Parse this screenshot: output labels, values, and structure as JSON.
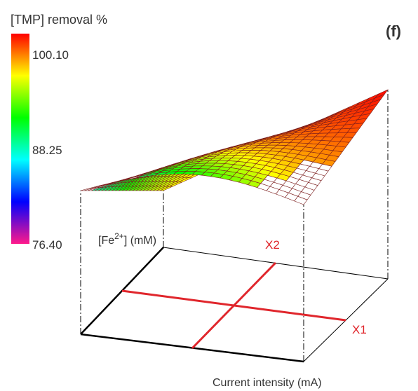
{
  "panel_label": "(f)",
  "colorbar": {
    "title": "[TMP] removal %",
    "ticks": [
      "100.10",
      "88.25",
      "76.40"
    ],
    "range": [
      76.4,
      100.1
    ],
    "stops": [
      "#ff1a8a",
      "#0000ff",
      "#00ffff",
      "#00ff00",
      "#ffff00",
      "#ff0000"
    ]
  },
  "chart_data": {
    "type": "surface",
    "zlabel": "[TMP] removal %",
    "ylabel": "[Fe²⁺] (mM)",
    "xlabel": "Current intensity (mA)",
    "factor_labels": [
      "X2",
      "X1"
    ],
    "zlim": [
      76.4,
      100.1
    ],
    "grid": true,
    "surface_model": "z increases with current intensity and [Fe2+]; maximum ~100 at high-high corner, minimum ~86 at low-low corner",
    "corners": {
      "x_low_y_low": 86,
      "x_high_y_low": 96,
      "x_low_y_high": 95,
      "x_high_y_high": 100
    }
  },
  "axis": {
    "fe_label_main": "[Fe",
    "fe_label_sup": "2+",
    "fe_label_tail": "] (mM)",
    "x_label": "Current intensity (mA)",
    "x2_label": "X2",
    "x1_label": "X1"
  },
  "colors": {
    "surface_low": "#9acd00",
    "surface_high": "#d40000",
    "mesh": "#7a1c1c",
    "marker": "#e0262c"
  }
}
